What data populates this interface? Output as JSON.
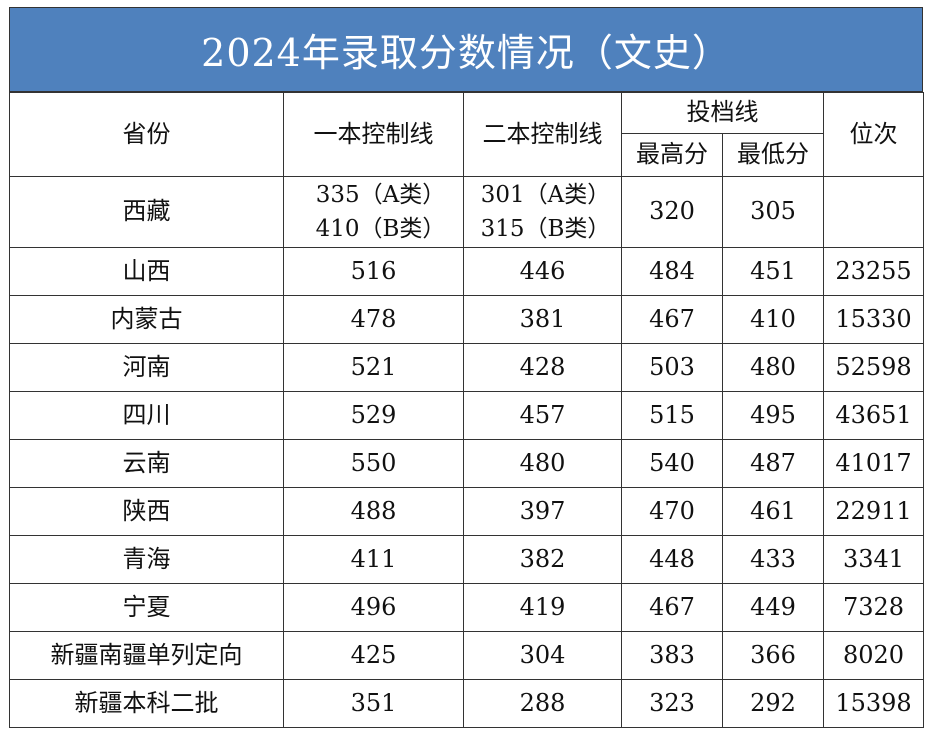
{
  "title": "2024年录取分数情况（文史）",
  "headers": {
    "province": "省份",
    "first_tier": "一本控制线",
    "second_tier": "二本控制线",
    "filing_line": "投档线",
    "highest": "最高分",
    "lowest": "最低分",
    "rank": "位次"
  },
  "tibet": {
    "province": "西藏",
    "first_a": "335（A类）",
    "first_b": "410（B类）",
    "second_a": "301（A类）",
    "second_b": "315（B类）",
    "highest": "320",
    "lowest": "305",
    "rank": ""
  },
  "rows": [
    {
      "province": "山西",
      "first": "516",
      "second": "446",
      "highest": "484",
      "lowest": "451",
      "rank": "23255"
    },
    {
      "province": "内蒙古",
      "first": "478",
      "second": "381",
      "highest": "467",
      "lowest": "410",
      "rank": "15330"
    },
    {
      "province": "河南",
      "first": "521",
      "second": "428",
      "highest": "503",
      "lowest": "480",
      "rank": "52598"
    },
    {
      "province": "四川",
      "first": "529",
      "second": "457",
      "highest": "515",
      "lowest": "495",
      "rank": "43651"
    },
    {
      "province": "云南",
      "first": "550",
      "second": "480",
      "highest": "540",
      "lowest": "487",
      "rank": "41017"
    },
    {
      "province": "陕西",
      "first": "488",
      "second": "397",
      "highest": "470",
      "lowest": "461",
      "rank": "22911"
    },
    {
      "province": "青海",
      "first": "411",
      "second": "382",
      "highest": "448",
      "lowest": "433",
      "rank": "3341"
    },
    {
      "province": "宁夏",
      "first": "496",
      "second": "419",
      "highest": "467",
      "lowest": "449",
      "rank": "7328"
    },
    {
      "province": "新疆南疆单列定向",
      "first": "425",
      "second": "304",
      "highest": "383",
      "lowest": "366",
      "rank": "8020"
    },
    {
      "province": "新疆本科二批",
      "first": "351",
      "second": "288",
      "highest": "323",
      "lowest": "292",
      "rank": "15398"
    }
  ],
  "colors": {
    "title_bg": "#4f81bd",
    "title_text": "#ffffff",
    "border": "#333333"
  }
}
